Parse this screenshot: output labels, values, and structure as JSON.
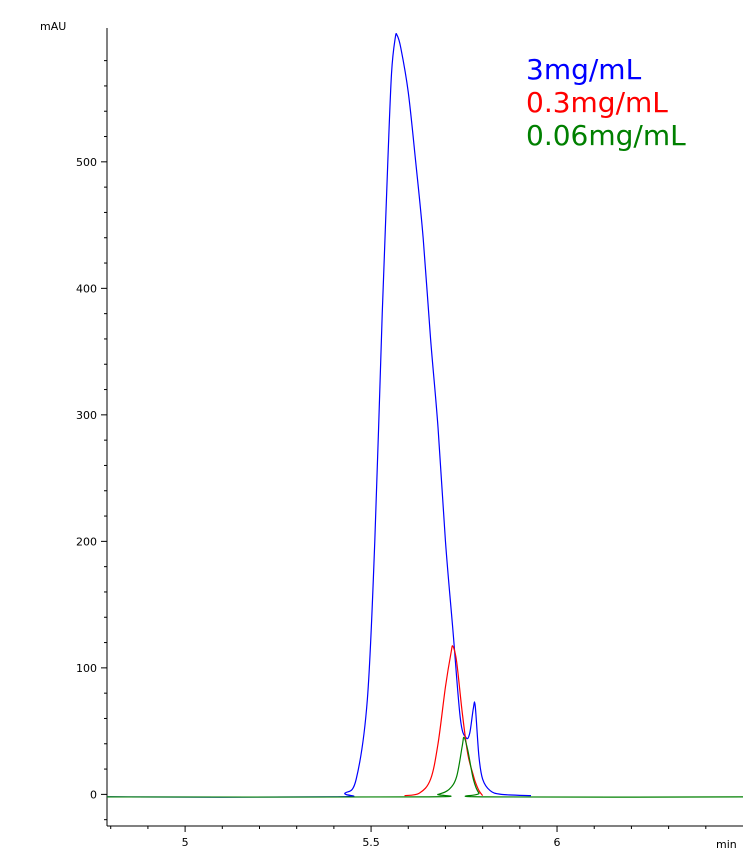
{
  "chart_data": {
    "type": "line",
    "ylabel": "mAU",
    "xlabel": "min",
    "xlim": [
      4.79,
      6.5
    ],
    "ylim": [
      -25,
      605
    ],
    "x_ticks": [
      5,
      5.5,
      6
    ],
    "x_tick_labels": [
      "5",
      "5.5",
      "6"
    ],
    "y_ticks": [
      0,
      100,
      200,
      300,
      400,
      500
    ],
    "y_tick_labels": [
      "0",
      "100",
      "200",
      "300",
      "400",
      "500"
    ],
    "grid": false,
    "legend_position": "top-right",
    "series": [
      {
        "name": "3mg/mL",
        "color": "#0000ff",
        "points": [
          [
            4.79,
            -2
          ],
          [
            5.4,
            -2
          ],
          [
            5.43,
            1
          ],
          [
            5.46,
            12
          ],
          [
            5.49,
            75
          ],
          [
            5.51,
            200
          ],
          [
            5.53,
            380
          ],
          [
            5.545,
            500
          ],
          [
            5.555,
            570
          ],
          [
            5.565,
            598
          ],
          [
            5.57,
            600
          ],
          [
            5.58,
            590
          ],
          [
            5.6,
            555
          ],
          [
            5.62,
            500
          ],
          [
            5.64,
            440
          ],
          [
            5.66,
            360
          ],
          [
            5.68,
            290
          ],
          [
            5.7,
            200
          ],
          [
            5.72,
            130
          ],
          [
            5.74,
            60
          ],
          [
            5.755,
            45
          ],
          [
            5.765,
            48
          ],
          [
            5.775,
            68
          ],
          [
            5.78,
            70
          ],
          [
            5.79,
            30
          ],
          [
            5.8,
            12
          ],
          [
            5.82,
            3
          ],
          [
            5.85,
            0
          ],
          [
            5.93,
            -1
          ]
        ]
      },
      {
        "name": "0.3mg/mL",
        "color": "#ff0000",
        "points": [
          [
            5.59,
            -1
          ],
          [
            5.63,
            1
          ],
          [
            5.66,
            12
          ],
          [
            5.68,
            40
          ],
          [
            5.7,
            85
          ],
          [
            5.715,
            112
          ],
          [
            5.72,
            117
          ],
          [
            5.73,
            105
          ],
          [
            5.745,
            65
          ],
          [
            5.76,
            32
          ],
          [
            5.775,
            15
          ],
          [
            5.78,
            10
          ],
          [
            5.79,
            3
          ],
          [
            5.8,
            -1
          ]
        ]
      },
      {
        "name": "0.06mg/mL",
        "color": "#008000",
        "points": [
          [
            4.79,
            -2
          ],
          [
            5.64,
            -2
          ],
          [
            5.68,
            0
          ],
          [
            5.71,
            4
          ],
          [
            5.73,
            14
          ],
          [
            5.745,
            38
          ],
          [
            5.75,
            45
          ],
          [
            5.76,
            35
          ],
          [
            5.775,
            12
          ],
          [
            5.79,
            1
          ],
          [
            5.81,
            -2
          ],
          [
            6.5,
            -2
          ]
        ]
      }
    ]
  }
}
